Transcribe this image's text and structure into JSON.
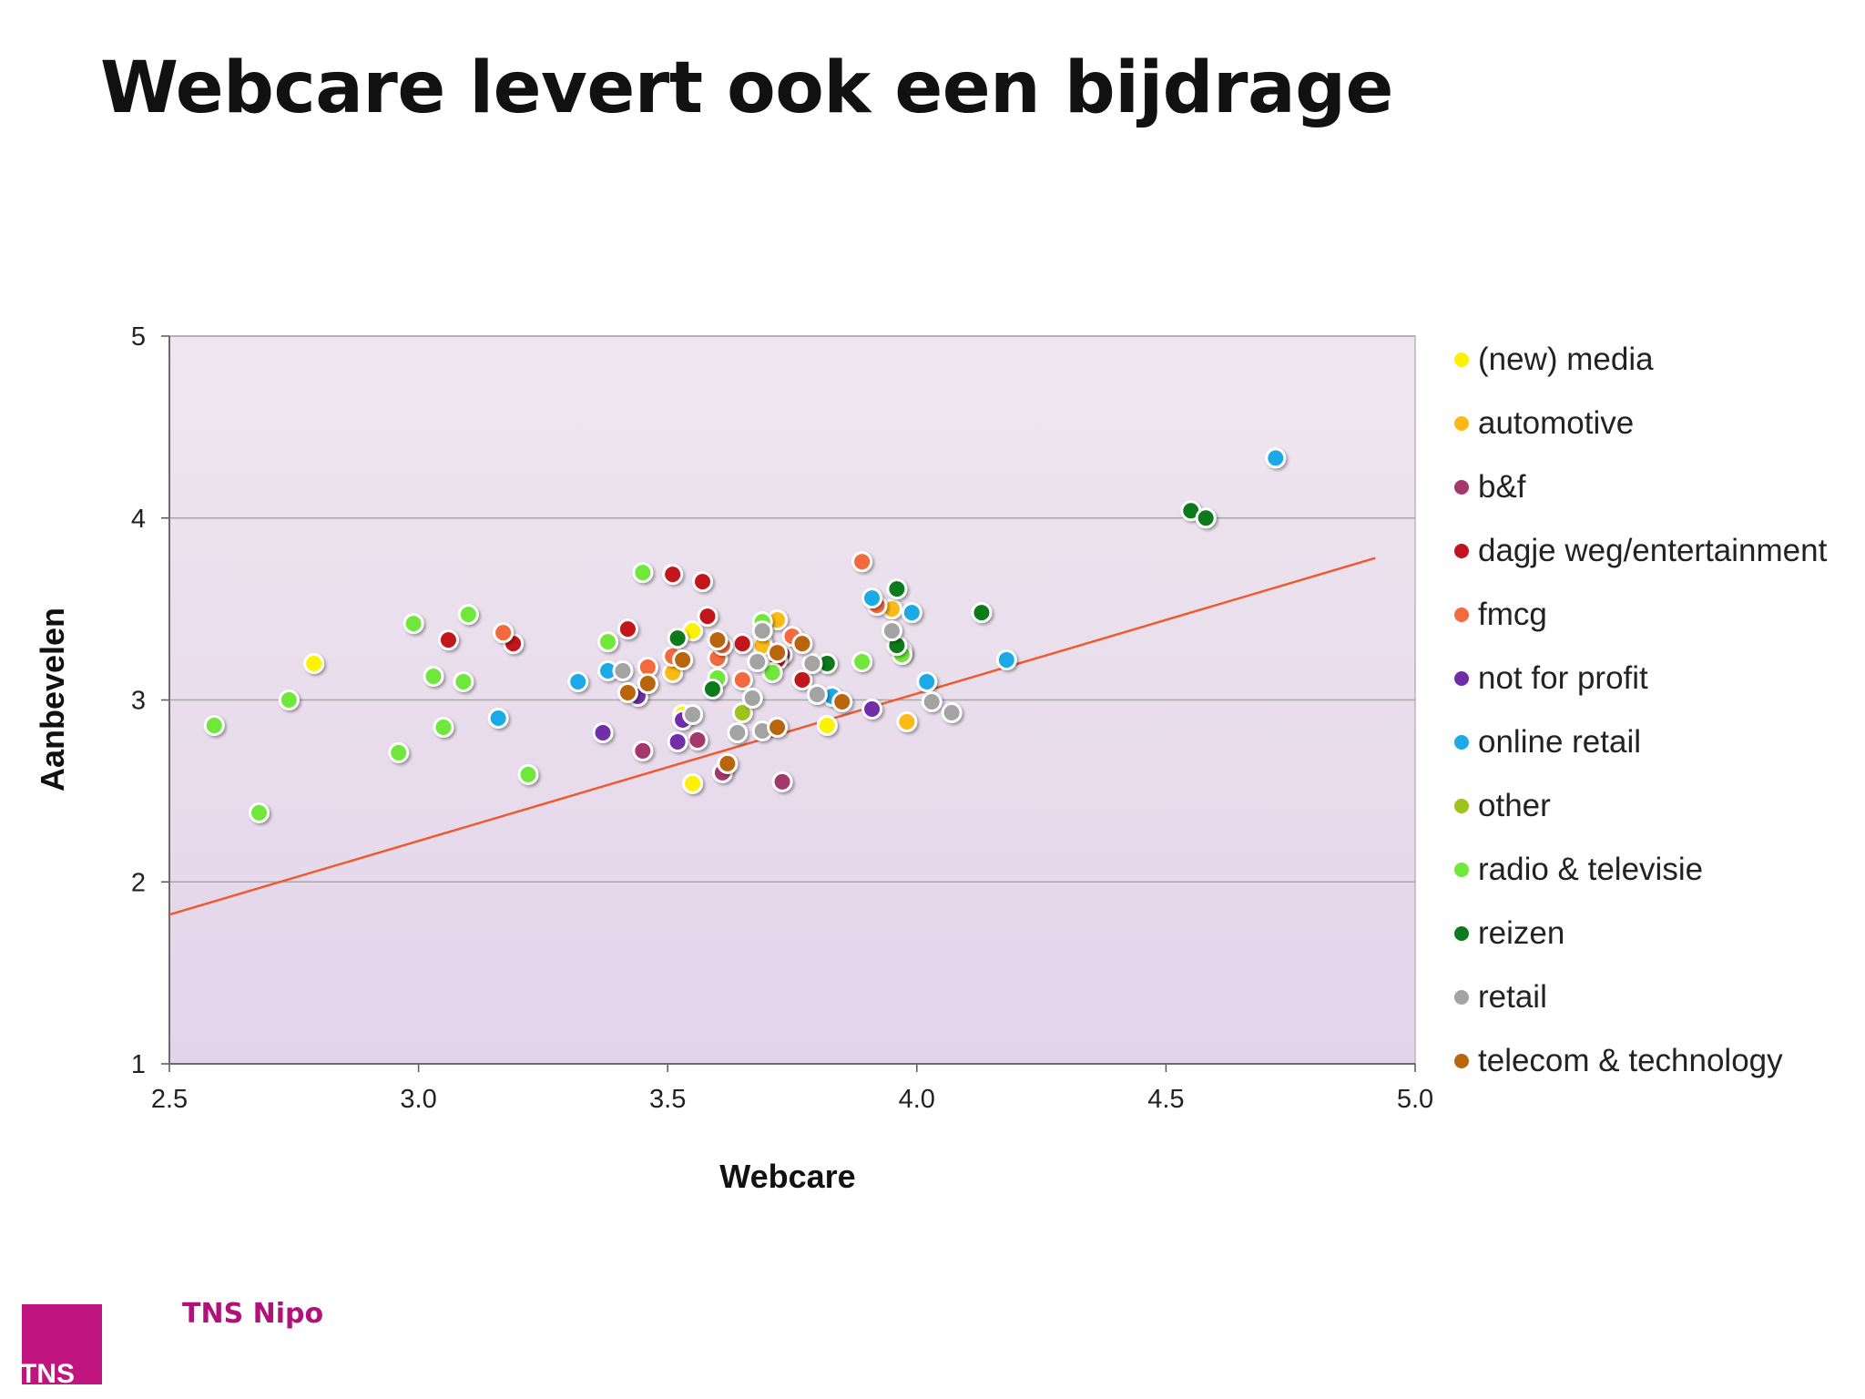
{
  "slide_title": "Webcare levert ook een bijdrage",
  "brand": {
    "logo_text": "TNS",
    "name": "TNS Nipo",
    "logo_color": "#c0157e"
  },
  "colors": {
    "plot_bg_top": "#efe7ef",
    "plot_bg_bottom": "#e3d4ea",
    "grid": "#a9a6ac",
    "trendline": "#ef5a2e"
  },
  "chart_data": {
    "type": "scatter",
    "title": "",
    "xlabel": "Webcare",
    "ylabel": "Aanbevelen",
    "xlim": [
      2.5,
      5.0
    ],
    "ylim": [
      1,
      5
    ],
    "xticks": [
      "2.5",
      "3.0",
      "3.5",
      "4.0",
      "4.5",
      "5.0"
    ],
    "yticks": [
      "1",
      "2",
      "3",
      "4",
      "5"
    ],
    "grid": true,
    "legend_position": "right",
    "trendline": {
      "x": [
        2.5,
        4.92
      ],
      "y": [
        1.82,
        3.78
      ]
    },
    "series": [
      {
        "name": "(new) media",
        "color": "#fff200",
        "points": [
          [
            2.79,
            3.2
          ],
          [
            3.55,
            3.38
          ],
          [
            3.55,
            2.54
          ],
          [
            3.82,
            2.86
          ],
          [
            3.53,
            2.92
          ],
          [
            3.69,
            3.32
          ]
        ]
      },
      {
        "name": "automotive",
        "color": "#fdb913",
        "points": [
          [
            3.72,
            3.44
          ],
          [
            3.95,
            3.5
          ],
          [
            3.98,
            2.88
          ],
          [
            3.51,
            3.15
          ],
          [
            3.69,
            3.3
          ]
        ]
      },
      {
        "name": "b&f",
        "color": "#a3396b",
        "points": [
          [
            3.45,
            2.72
          ],
          [
            3.56,
            2.78
          ],
          [
            3.61,
            2.6
          ],
          [
            3.73,
            2.55
          ],
          [
            3.73,
            3.25
          ]
        ]
      },
      {
        "name": "dagje weg/entertainment",
        "color": "#c1121f",
        "points": [
          [
            3.06,
            3.33
          ],
          [
            3.19,
            3.31
          ],
          [
            3.42,
            3.39
          ],
          [
            3.51,
            3.69
          ],
          [
            3.57,
            3.65
          ],
          [
            3.58,
            3.46
          ],
          [
            3.65,
            3.31
          ],
          [
            3.77,
            3.11
          ],
          [
            3.72,
            3.22
          ]
        ]
      },
      {
        "name": "fmcg",
        "color": "#f26a3d",
        "points": [
          [
            3.17,
            3.37
          ],
          [
            3.46,
            3.18
          ],
          [
            3.51,
            3.24
          ],
          [
            3.6,
            3.23
          ],
          [
            3.61,
            3.3
          ],
          [
            3.65,
            3.11
          ],
          [
            3.75,
            3.35
          ],
          [
            3.89,
            3.76
          ],
          [
            3.92,
            3.52
          ]
        ]
      },
      {
        "name": "not for profit",
        "color": "#6f2da8",
        "points": [
          [
            3.37,
            2.82
          ],
          [
            3.44,
            3.02
          ],
          [
            3.52,
            2.77
          ],
          [
            3.53,
            2.89
          ],
          [
            3.91,
            2.95
          ]
        ]
      },
      {
        "name": "online retail",
        "color": "#1eaae7",
        "points": [
          [
            3.16,
            2.9
          ],
          [
            3.32,
            3.1
          ],
          [
            3.38,
            3.16
          ],
          [
            3.83,
            3.02
          ],
          [
            3.91,
            3.56
          ],
          [
            3.99,
            3.48
          ],
          [
            4.02,
            3.1
          ],
          [
            4.18,
            3.22
          ],
          [
            4.72,
            4.33
          ]
        ]
      },
      {
        "name": "other",
        "color": "#9dc31c",
        "points": [
          [
            3.65,
            2.93
          ],
          [
            3.97,
            3.27
          ]
        ]
      },
      {
        "name": "radio & televisie",
        "color": "#6fe83a",
        "points": [
          [
            2.59,
            2.86
          ],
          [
            2.68,
            2.38
          ],
          [
            2.74,
            3.0
          ],
          [
            2.96,
            2.71
          ],
          [
            2.99,
            3.42
          ],
          [
            3.03,
            3.13
          ],
          [
            3.05,
            2.85
          ],
          [
            3.09,
            3.1
          ],
          [
            3.1,
            3.47
          ],
          [
            3.22,
            2.59
          ],
          [
            3.38,
            3.32
          ],
          [
            3.45,
            3.7
          ],
          [
            3.6,
            3.12
          ],
          [
            3.69,
            3.43
          ],
          [
            3.71,
            3.15
          ],
          [
            3.89,
            3.21
          ],
          [
            3.97,
            3.25
          ]
        ]
      },
      {
        "name": "reizen",
        "color": "#0e7a1f",
        "points": [
          [
            3.52,
            3.34
          ],
          [
            3.59,
            3.06
          ],
          [
            3.82,
            3.2
          ],
          [
            3.96,
            3.61
          ],
          [
            3.96,
            3.3
          ],
          [
            4.13,
            3.48
          ],
          [
            4.55,
            4.04
          ],
          [
            4.58,
            4.0
          ]
        ]
      },
      {
        "name": "retail",
        "color": "#a3a3a3",
        "points": [
          [
            3.41,
            3.16
          ],
          [
            3.55,
            2.92
          ],
          [
            3.64,
            2.82
          ],
          [
            3.67,
            3.01
          ],
          [
            3.68,
            3.21
          ],
          [
            3.69,
            3.38
          ],
          [
            3.69,
            2.83
          ],
          [
            3.79,
            3.2
          ],
          [
            3.8,
            3.03
          ],
          [
            3.95,
            3.38
          ],
          [
            4.03,
            2.99
          ],
          [
            4.07,
            2.93
          ]
        ]
      },
      {
        "name": "telecom & technology",
        "color": "#b8650e",
        "points": [
          [
            3.42,
            3.04
          ],
          [
            3.46,
            3.09
          ],
          [
            3.53,
            3.22
          ],
          [
            3.6,
            3.33
          ],
          [
            3.62,
            2.65
          ],
          [
            3.72,
            2.85
          ],
          [
            3.72,
            3.26
          ],
          [
            3.77,
            3.31
          ],
          [
            3.85,
            2.99
          ]
        ]
      }
    ]
  }
}
